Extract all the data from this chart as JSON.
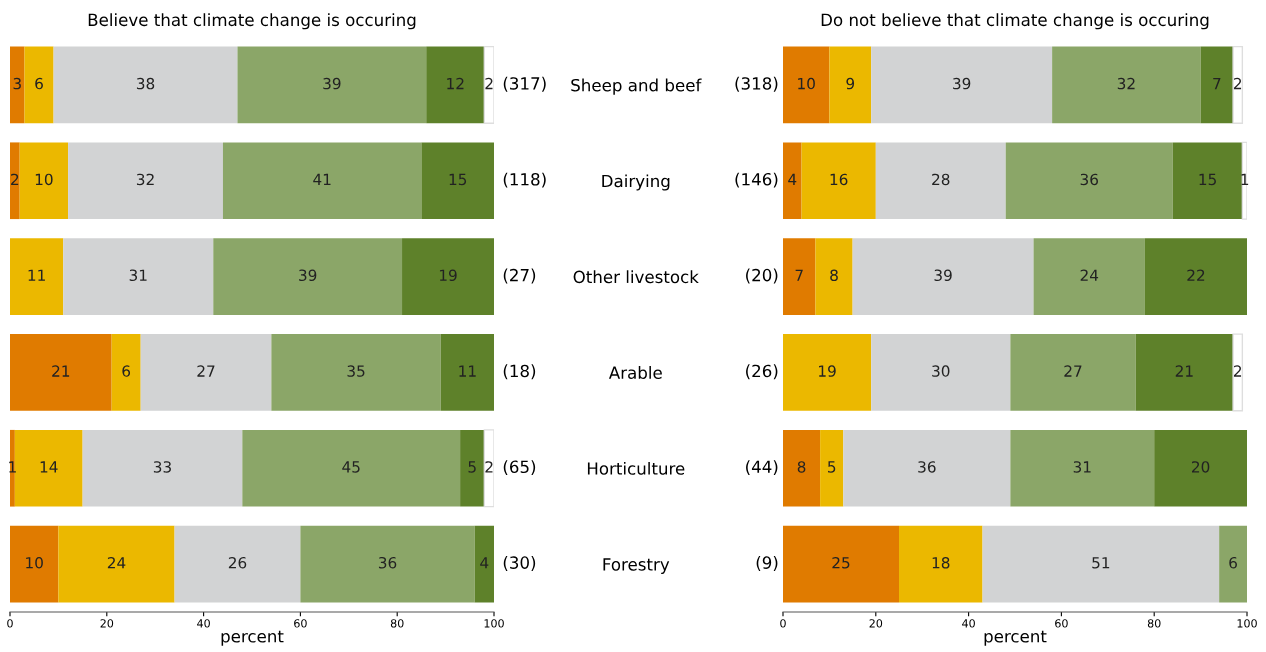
{
  "chart_data": [
    {
      "type": "bar",
      "orientation": "horizontal",
      "stacked": true,
      "title": "Believe that climate change is occuring",
      "xlabel": "percent",
      "categories": [
        null,
        null,
        null,
        null,
        null,
        null
      ],
      "series": [
        {
          "color": "#e07b00",
          "values": [
            3,
            2,
            null,
            21,
            1,
            10
          ]
        },
        {
          "color": "#ebb800",
          "values": [
            6,
            10,
            11,
            6,
            14,
            24
          ]
        },
        {
          "color": "#d2d3d4",
          "values": [
            38,
            32,
            31,
            27,
            33,
            26
          ]
        },
        {
          "color": "#8ba668",
          "values": [
            39,
            41,
            39,
            35,
            45,
            36
          ]
        },
        {
          "color": "#5e812a",
          "values": [
            12,
            15,
            19,
            11,
            5,
            4
          ]
        },
        {
          "color": "#ffffff",
          "values": [
            2,
            null,
            null,
            null,
            2,
            null
          ]
        }
      ],
      "data_labels": true,
      "xlim": [
        0,
        100
      ],
      "xticks": [
        0,
        20,
        40,
        60,
        80,
        100
      ],
      "tick_labels": "x",
      "grid": false,
      "legend": false,
      "annotations": [
        "(317)",
        "(118)",
        "(27)",
        "(18)",
        "(65)",
        "(30)"
      ]
    },
    {
      "type": "bar",
      "orientation": "horizontal",
      "stacked": true,
      "title": "Do not believe that climate change is occuring",
      "xlabel": "percent",
      "categories": [
        "Sheep and beef",
        "Dairying",
        "Other livestock",
        "Arable",
        "Horticulture",
        "Forestry"
      ],
      "series": [
        {
          "color": "#e07b00",
          "values": [
            10,
            4,
            7,
            null,
            8,
            25
          ]
        },
        {
          "color": "#ebb800",
          "values": [
            9,
            16,
            8,
            19,
            5,
            18
          ]
        },
        {
          "color": "#d2d3d4",
          "values": [
            39,
            28,
            39,
            30,
            36,
            51
          ]
        },
        {
          "color": "#8ba668",
          "values": [
            32,
            36,
            24,
            27,
            31,
            6
          ]
        },
        {
          "color": "#5e812a",
          "values": [
            7,
            15,
            22,
            21,
            20,
            null
          ]
        },
        {
          "color": "#ffffff",
          "values": [
            2,
            1,
            null,
            2,
            null,
            null
          ]
        }
      ],
      "data_labels": true,
      "xlim": [
        0,
        100
      ],
      "xticks": [
        0,
        20,
        40,
        60,
        80,
        100
      ],
      "grid": false,
      "legend": false,
      "annotations": [
        "(318)",
        "(146)",
        "(20)",
        "(26)",
        "(44)",
        "(9)"
      ]
    }
  ]
}
